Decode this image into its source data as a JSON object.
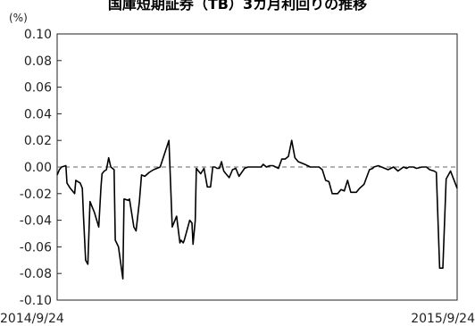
{
  "chart_data": {
    "type": "line",
    "title": "国庫短期証券（TB）3カ月利回りの推移",
    "ylabel": "",
    "y_unit": "(%)",
    "xlabel": "",
    "x_tick_labels": [
      "2014/9/24",
      "2015/9/24"
    ],
    "xlim": [
      "2014-09-24",
      "2015-09-24"
    ],
    "ylim": [
      -0.1,
      0.1
    ],
    "y_ticks": [
      0.1,
      0.08,
      0.06,
      0.04,
      0.02,
      0.0,
      -0.02,
      -0.04,
      -0.06,
      -0.08,
      -0.1
    ],
    "y_tick_labels": [
      "0.10",
      "0.08",
      "0.06",
      "0.04",
      "0.02",
      "0.00",
      "-0.02",
      "-0.04",
      "-0.06",
      "-0.08",
      "-0.10"
    ],
    "grid": false,
    "reference_line": {
      "y": 0.0,
      "style": "dashed",
      "color": "#666666"
    },
    "line_color": "#000000",
    "series": [
      {
        "x": [
          "2014-09-24",
          "2014-09-26",
          "2014-09-28",
          "2014-10-02",
          "2014-10-03",
          "2014-10-06",
          "2014-10-10",
          "2014-10-11",
          "2014-10-15",
          "2014-10-17",
          "2014-10-18",
          "2014-10-20",
          "2014-10-22",
          "2014-10-24",
          "2014-10-25",
          "2014-10-28",
          "2014-11-01",
          "2014-11-03",
          "2014-11-04",
          "2014-11-06",
          "2014-11-08",
          "2014-11-10",
          "2014-11-12",
          "2014-11-15",
          "2014-11-16",
          "2014-11-19",
          "2014-11-23",
          "2014-11-24",
          "2014-11-28",
          "2014-11-29",
          "2014-12-03",
          "2014-12-05",
          "2014-12-08",
          "2014-12-10",
          "2014-12-13",
          "2014-12-17",
          "2014-12-21",
          "2014-12-24",
          "2014-12-27",
          "2015-01-04",
          "2015-01-07",
          "2015-01-11",
          "2015-01-14",
          "2015-01-15",
          "2015-01-17",
          "2015-01-18",
          "2015-01-23",
          "2015-01-25",
          "2015-01-26",
          "2015-01-28",
          "2015-01-29",
          "2015-01-31",
          "2015-02-02",
          "2015-02-05",
          "2015-02-08",
          "2015-02-11",
          "2015-02-13",
          "2015-02-15",
          "2015-02-17",
          "2015-02-19",
          "2015-02-21",
          "2015-02-23",
          "2015-02-25",
          "2015-02-28",
          "2015-03-03",
          "2015-03-06",
          "2015-03-09",
          "2015-03-14",
          "2015-03-17",
          "2015-03-20",
          "2015-03-23",
          "2015-03-26",
          "2015-03-27",
          "2015-03-29",
          "2015-03-31",
          "2015-04-03",
          "2015-04-06",
          "2015-04-09",
          "2015-04-14",
          "2015-04-17",
          "2015-04-20",
          "2015-04-23",
          "2015-04-26",
          "2015-04-29",
          "2015-05-02",
          "2015-05-05",
          "2015-05-08",
          "2015-05-13",
          "2015-05-18",
          "2015-05-21",
          "2015-05-24",
          "2015-05-27",
          "2015-05-30",
          "2015-06-02",
          "2015-06-07",
          "2015-06-10",
          "2015-06-13",
          "2015-06-16",
          "2015-06-19",
          "2015-06-24",
          "2015-06-27",
          "2015-07-01",
          "2015-07-06",
          "2015-07-09",
          "2015-07-10",
          "2015-07-14",
          "2015-07-17",
          "2015-07-20",
          "2015-07-23",
          "2015-07-28",
          "2015-08-01",
          "2015-08-06",
          "2015-08-09",
          "2015-08-11",
          "2015-08-15",
          "2015-08-18",
          "2015-08-23",
          "2015-08-27",
          "2015-08-30",
          "2015-09-03",
          "2015-09-05",
          "2015-09-08",
          "2015-09-11",
          "2015-09-14",
          "2015-09-18",
          "2015-09-24"
        ],
        "y": [
          -0.006,
          -0.002,
          0.0,
          0.001,
          -0.012,
          -0.016,
          -0.02,
          -0.01,
          -0.012,
          -0.016,
          -0.037,
          -0.07,
          -0.073,
          -0.026,
          -0.028,
          -0.034,
          -0.045,
          -0.015,
          -0.005,
          -0.003,
          -0.002,
          0.007,
          0.0,
          -0.002,
          -0.055,
          -0.06,
          -0.084,
          -0.024,
          -0.025,
          -0.024,
          -0.045,
          -0.048,
          -0.026,
          -0.006,
          -0.007,
          -0.004,
          -0.002,
          -0.001,
          0.0,
          0.02,
          -0.045,
          -0.037,
          -0.057,
          -0.055,
          -0.057,
          -0.055,
          -0.04,
          -0.042,
          -0.058,
          -0.04,
          -0.001,
          -0.003,
          -0.005,
          -0.001,
          -0.015,
          -0.015,
          0.0,
          0.0,
          -0.001,
          -0.001,
          0.004,
          -0.003,
          -0.005,
          -0.008,
          -0.002,
          -0.001,
          -0.007,
          -0.001,
          0.0,
          0.0,
          0.0,
          0.0,
          0.0,
          0.0,
          0.002,
          0.0,
          0.001,
          0.001,
          -0.001,
          0.006,
          0.006,
          0.008,
          0.02,
          0.007,
          0.004,
          0.003,
          0.002,
          0.0,
          0.0,
          0.0,
          -0.002,
          -0.01,
          -0.011,
          -0.02,
          -0.02,
          -0.017,
          -0.018,
          -0.01,
          -0.019,
          -0.019,
          -0.016,
          -0.013,
          -0.002,
          -0.001,
          0.0,
          0.001,
          0.0,
          -0.001,
          -0.002,
          0.0,
          -0.003,
          0.0,
          -0.001,
          0.0,
          0.0,
          -0.001,
          0.0,
          0.0,
          -0.002,
          -0.003,
          -0.004,
          -0.076,
          -0.076,
          -0.009,
          -0.003,
          -0.016
        ]
      }
    ]
  }
}
